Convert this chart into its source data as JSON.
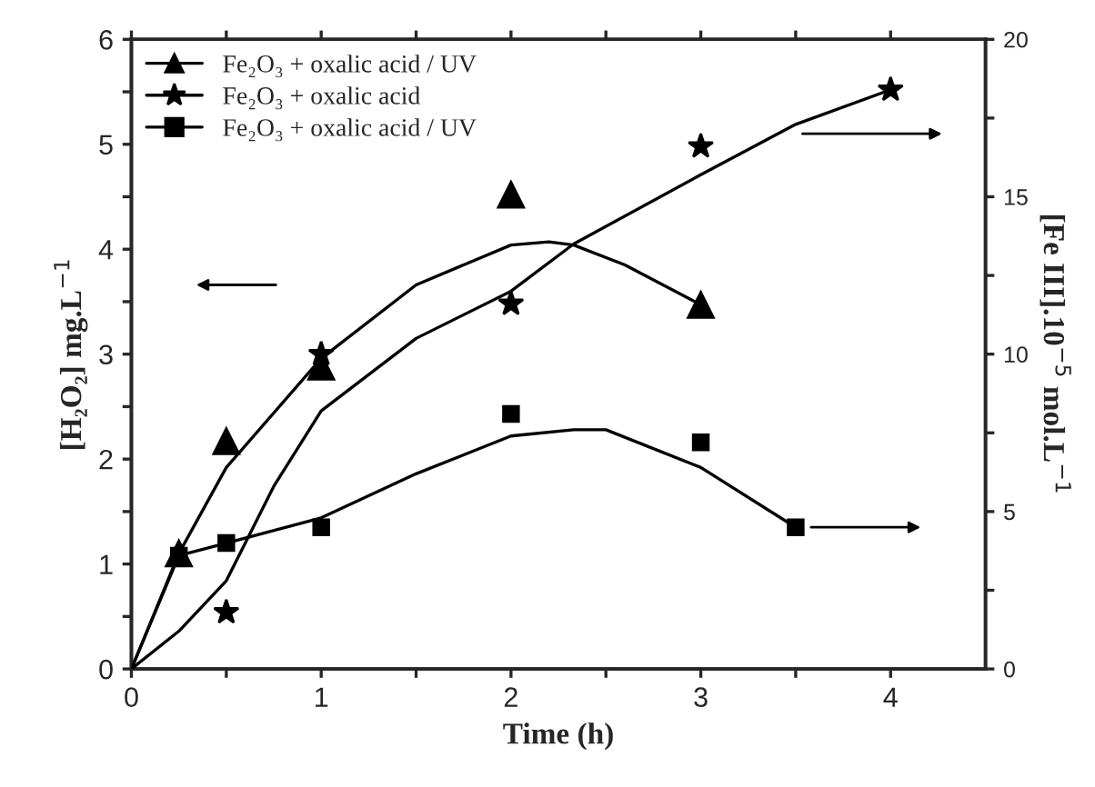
{
  "chart_data": {
    "type": "scatter",
    "xlabel": "Time (h)",
    "ylabel": "[H₂O₂] mg.L$^{−1}$",
    "y2label": "[Fe III].10$^{−5}$ mol.L$^{−1}$",
    "xlim": [
      0,
      4.5
    ],
    "xticks": [
      0,
      {
        "value": 0.5,
        "label": null
      },
      1,
      {
        "value": 1.5,
        "label": null
      },
      2,
      {
        "value": 2.5,
        "label": null
      },
      3,
      {
        "value": 3.5,
        "label": null
      },
      4
    ],
    "ylim": [
      0,
      6
    ],
    "yticks": [
      0,
      {
        "value": 0.5,
        "label": null
      },
      1,
      {
        "value": 1.5,
        "label": null
      },
      2,
      {
        "value": 2.5,
        "label": null
      },
      3,
      {
        "value": 3.5,
        "label": null
      },
      4,
      {
        "value": 4.5,
        "label": null
      },
      5,
      {
        "value": 5.5,
        "label": null
      },
      6
    ],
    "y2lim": [
      0,
      20
    ],
    "y2ticks": [
      0,
      {
        "value": 2.5,
        "label": null
      },
      5,
      {
        "value": 7.5,
        "label": null
      },
      10,
      {
        "value": 12.5,
        "label": null
      },
      15,
      {
        "value": 17.5,
        "label": null
      },
      20
    ],
    "legend": "top left",
    "grid": false,
    "series": [
      {
        "name": "Fe₂O₃ + oxalic acid / UV",
        "marker": "triangle",
        "color": "#000000",
        "x": [
          0.25,
          0.5,
          1,
          2,
          3
        ],
        "values": [
          1.1,
          2.17,
          2.88,
          4.52,
          3.47
        ]
      },
      {
        "name": "Fe₂O₃ + oxalic acid",
        "marker": "star",
        "color": "#000000",
        "axis": "y2",
        "x": [
          0.5,
          1,
          2,
          3,
          4
        ],
        "values": [
          1.8,
          10.0,
          11.6,
          16.6,
          18.4
        ]
      },
      {
        "name": "Fe₂O₃ + oxalic acid / UV",
        "marker": "square",
        "color": "#000000",
        "axis": "y2",
        "x": [
          0.25,
          0.5,
          1,
          2,
          3,
          3.5
        ],
        "values": [
          3.6,
          4.0,
          4.5,
          8.1,
          7.2,
          4.5
        ]
      },
      {
        "type": "line",
        "color": "#000000",
        "x": [
          0,
          0.25,
          0.5,
          1,
          1.5,
          2,
          2.2,
          2.33,
          2.6,
          3
        ],
        "values": [
          0,
          1.1,
          1.92,
          2.96,
          3.66,
          4.04,
          4.07,
          4.04,
          3.85,
          3.47
        ]
      },
      {
        "type": "line",
        "color": "#000000",
        "axis": "y2",
        "x": [
          0,
          0.25,
          0.5,
          0.75,
          1,
          1.5,
          2,
          2.33,
          3,
          3.5,
          4
        ],
        "values": [
          0,
          1.2,
          2.8,
          5.8,
          8.2,
          10.5,
          12.0,
          13.5,
          15.7,
          17.3,
          18.4
        ]
      },
      {
        "type": "line",
        "color": "#000000",
        "axis": "y2",
        "x": [
          0,
          0.25,
          0.5,
          1,
          1.5,
          2,
          2.33,
          2.5,
          3,
          3.5
        ],
        "values": [
          0,
          3.6,
          4.0,
          4.8,
          6.2,
          7.4,
          7.6,
          7.6,
          6.4,
          4.5
        ]
      }
    ]
  }
}
